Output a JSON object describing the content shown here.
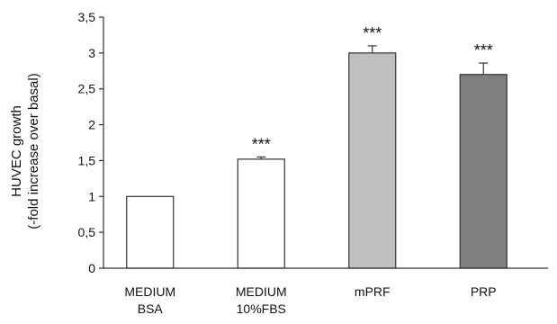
{
  "chart_data": {
    "type": "bar",
    "title": "",
    "xlabel": "",
    "ylabel_lines": [
      "HUVEC growth",
      "(-fold increase over basal)"
    ],
    "categories": [
      [
        "MEDIUM",
        "BSA"
      ],
      [
        "MEDIUM",
        "10%FBS"
      ],
      [
        "mPRF"
      ],
      [
        "PRP"
      ]
    ],
    "values": [
      1.0,
      1.52,
      3.0,
      2.7
    ],
    "errors": [
      0.0,
      0.03,
      0.1,
      0.16
    ],
    "significance": [
      "",
      "***",
      "***",
      "***"
    ],
    "bar_colors": [
      "#ffffff",
      "#ffffff",
      "#bfbfbf",
      "#7f7f7f"
    ],
    "ylim": [
      0,
      3.5
    ],
    "ytick_values": [
      0,
      0.5,
      1,
      1.5,
      2,
      2.5,
      3,
      3.5
    ],
    "ytick_labels": [
      "0",
      "0,5",
      "1",
      "1,5",
      "2",
      "2,5",
      "3",
      "3,5"
    ],
    "grid": false,
    "legend": "none"
  }
}
